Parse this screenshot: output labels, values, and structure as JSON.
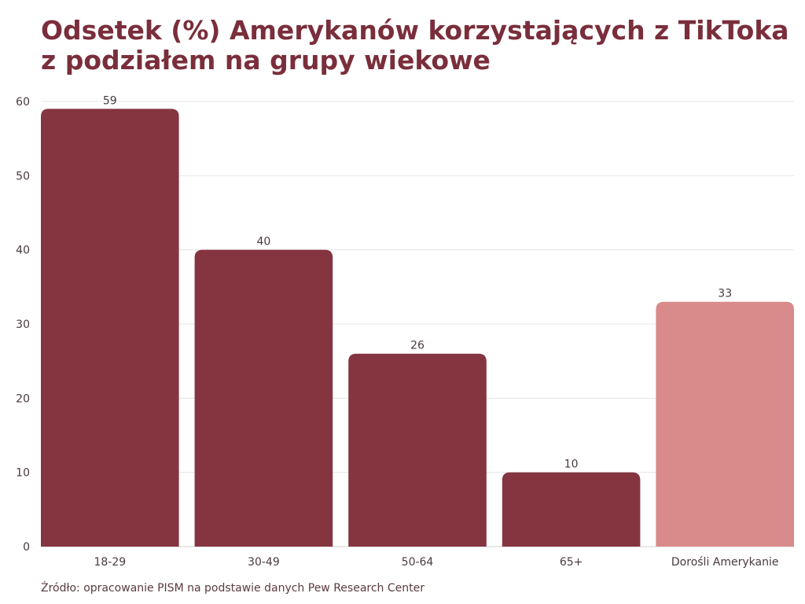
{
  "chart_data": {
    "type": "bar",
    "title_line1": "Odsetek (%) Amerykanów korzystających z TikToka",
    "title_line2": "z podziałem na grupy wiekowe",
    "categories": [
      "18-29",
      "30-49",
      "50-64",
      "65+",
      "Dorośli Amerykanie"
    ],
    "values": [
      59,
      40,
      26,
      10,
      33
    ],
    "highlight": [
      false,
      false,
      false,
      false,
      true
    ],
    "yticks": [
      0,
      10,
      20,
      30,
      40,
      50,
      60
    ],
    "ylim": [
      0,
      60
    ],
    "xlabel": "",
    "ylabel": "",
    "grid": true,
    "colors": {
      "bar": "#843540",
      "highlight": "#d98a8a",
      "grid": "#e4e4e4"
    },
    "source": "Źródło: opracowanie PISM na podstawie danych Pew Research Center"
  }
}
